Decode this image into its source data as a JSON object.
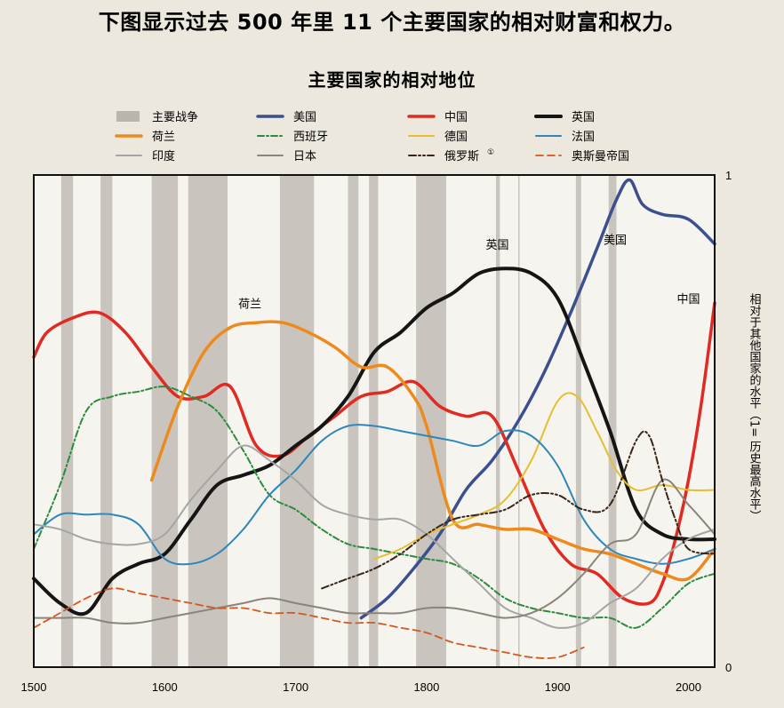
{
  "page": {
    "headline": "下图显示过去 500 年里 11 个主要国家的相对财富和权力。"
  },
  "chart_data": {
    "type": "line",
    "title": "主要国家的相对地位",
    "xlabel": "",
    "ylabel": "相对于其他国家的水平（1= 历史最高水平）",
    "xlim": [
      1500,
      2020
    ],
    "ylim": [
      0,
      1
    ],
    "x_ticks": [
      "1500",
      "1600",
      "1700",
      "1800",
      "1900",
      "2000"
    ],
    "y_ticks": [
      "0",
      "1"
    ],
    "footnote_mark": "①",
    "legend_war_label": "主要战争",
    "war_color": "#b9b5ad",
    "wars": [
      [
        1521,
        1530
      ],
      [
        1551,
        1560
      ],
      [
        1590,
        1610
      ],
      [
        1618,
        1648
      ],
      [
        1688,
        1714
      ],
      [
        1740,
        1748
      ],
      [
        1756,
        1763
      ],
      [
        1792,
        1815
      ],
      [
        1853,
        1856
      ],
      [
        1870,
        1871
      ],
      [
        1914,
        1918
      ],
      [
        1939,
        1945
      ]
    ],
    "annotations": [
      {
        "text": "荷兰",
        "x": 1665,
        "y": 0.73
      },
      {
        "text": "英国",
        "x": 1854,
        "y": 0.85
      },
      {
        "text": "美国",
        "x": 1944,
        "y": 0.86
      },
      {
        "text": "中国",
        "x": 2000,
        "y": 0.74
      }
    ],
    "series": [
      {
        "name": "美国",
        "color": "#3c4f8e",
        "width": 3.5,
        "dash": "",
        "x": [
          1750,
          1770,
          1790,
          1810,
          1830,
          1850,
          1870,
          1890,
          1910,
          1930,
          1945,
          1955,
          1965,
          1980,
          2000,
          2020
        ],
        "y": [
          0.1,
          0.14,
          0.2,
          0.27,
          0.36,
          0.42,
          0.5,
          0.6,
          0.72,
          0.85,
          0.95,
          0.99,
          0.94,
          0.92,
          0.91,
          0.86
        ]
      },
      {
        "name": "中国",
        "color": "#e02a22",
        "width": 3.5,
        "dash": "",
        "x": [
          1500,
          1510,
          1530,
          1550,
          1570,
          1590,
          1610,
          1630,
          1650,
          1670,
          1690,
          1710,
          1730,
          1750,
          1770,
          1790,
          1810,
          1830,
          1850,
          1870,
          1890,
          1910,
          1930,
          1950,
          1970,
          1980,
          1990,
          2000,
          2010,
          2020
        ],
        "y": [
          0.63,
          0.68,
          0.71,
          0.72,
          0.68,
          0.61,
          0.55,
          0.55,
          0.57,
          0.45,
          0.43,
          0.47,
          0.51,
          0.55,
          0.56,
          0.58,
          0.53,
          0.51,
          0.51,
          0.4,
          0.28,
          0.21,
          0.19,
          0.14,
          0.13,
          0.17,
          0.26,
          0.38,
          0.54,
          0.74
        ]
      },
      {
        "name": "英国",
        "color": "#151515",
        "width": 4,
        "dash": "",
        "x": [
          1500,
          1520,
          1540,
          1560,
          1580,
          1600,
          1620,
          1640,
          1660,
          1680,
          1700,
          1720,
          1740,
          1760,
          1780,
          1800,
          1820,
          1840,
          1860,
          1880,
          1900,
          1920,
          1940,
          1960,
          1980,
          2000,
          2020
        ],
        "y": [
          0.18,
          0.13,
          0.11,
          0.18,
          0.21,
          0.23,
          0.3,
          0.37,
          0.39,
          0.41,
          0.45,
          0.49,
          0.55,
          0.64,
          0.68,
          0.73,
          0.76,
          0.8,
          0.81,
          0.8,
          0.75,
          0.62,
          0.48,
          0.32,
          0.27,
          0.26,
          0.26
        ]
      },
      {
        "name": "荷兰",
        "color": "#ee8a1d",
        "width": 3.5,
        "dash": "",
        "x": [
          1590,
          1610,
          1630,
          1650,
          1670,
          1690,
          1710,
          1730,
          1750,
          1770,
          1790,
          1800,
          1820,
          1840,
          1860,
          1880,
          1900,
          1920,
          1940,
          1960,
          1980,
          2000,
          2020
        ],
        "y": [
          0.38,
          0.53,
          0.64,
          0.69,
          0.7,
          0.7,
          0.68,
          0.65,
          0.61,
          0.61,
          0.55,
          0.49,
          0.3,
          0.29,
          0.28,
          0.28,
          0.26,
          0.24,
          0.23,
          0.21,
          0.19,
          0.18,
          0.24
        ]
      },
      {
        "name": "西班牙",
        "color": "#2d8a3e",
        "width": 2,
        "dash": "7,3,2,3",
        "x": [
          1500,
          1520,
          1540,
          1560,
          1580,
          1600,
          1620,
          1640,
          1660,
          1680,
          1700,
          1720,
          1740,
          1760,
          1780,
          1800,
          1820,
          1840,
          1860,
          1880,
          1900,
          1920,
          1940,
          1960,
          1980,
          2000,
          2020
        ],
        "y": [
          0.24,
          0.37,
          0.52,
          0.55,
          0.56,
          0.57,
          0.55,
          0.52,
          0.44,
          0.35,
          0.32,
          0.28,
          0.25,
          0.24,
          0.23,
          0.22,
          0.21,
          0.18,
          0.14,
          0.12,
          0.11,
          0.1,
          0.1,
          0.08,
          0.12,
          0.17,
          0.19
        ]
      },
      {
        "name": "德国",
        "color": "#e6be2f",
        "width": 2,
        "dash": "",
        "x": [
          1760,
          1780,
          1800,
          1820,
          1840,
          1860,
          1880,
          1900,
          1915,
          1930,
          1945,
          1960,
          1980,
          2000,
          2020
        ],
        "y": [
          0.22,
          0.24,
          0.27,
          0.29,
          0.31,
          0.34,
          0.42,
          0.54,
          0.55,
          0.48,
          0.4,
          0.36,
          0.37,
          0.36,
          0.36
        ]
      },
      {
        "name": "法国",
        "color": "#2e87b8",
        "width": 2,
        "dash": "",
        "x": [
          1500,
          1520,
          1540,
          1560,
          1580,
          1600,
          1620,
          1640,
          1660,
          1680,
          1700,
          1720,
          1740,
          1760,
          1780,
          1800,
          1820,
          1840,
          1860,
          1880,
          1900,
          1920,
          1940,
          1960,
          1980,
          2000,
          2020
        ],
        "y": [
          0.27,
          0.31,
          0.31,
          0.31,
          0.29,
          0.22,
          0.21,
          0.23,
          0.28,
          0.35,
          0.4,
          0.46,
          0.49,
          0.49,
          0.48,
          0.47,
          0.46,
          0.45,
          0.48,
          0.47,
          0.41,
          0.3,
          0.24,
          0.22,
          0.21,
          0.22,
          0.24
        ]
      },
      {
        "name": "印度",
        "color": "#a5a5a5",
        "width": 2,
        "dash": "",
        "x": [
          1500,
          1520,
          1540,
          1560,
          1580,
          1600,
          1620,
          1640,
          1660,
          1680,
          1700,
          1720,
          1740,
          1760,
          1780,
          1800,
          1820,
          1840,
          1860,
          1880,
          1900,
          1920,
          1940,
          1960,
          1980,
          2000,
          2020
        ],
        "y": [
          0.29,
          0.28,
          0.26,
          0.25,
          0.25,
          0.27,
          0.34,
          0.4,
          0.45,
          0.42,
          0.38,
          0.33,
          0.31,
          0.3,
          0.3,
          0.27,
          0.22,
          0.17,
          0.12,
          0.1,
          0.08,
          0.09,
          0.13,
          0.16,
          0.22,
          0.26,
          0.28
        ]
      },
      {
        "name": "日本",
        "color": "#8a8479",
        "width": 2,
        "dash": "",
        "x": [
          1500,
          1520,
          1540,
          1560,
          1580,
          1600,
          1620,
          1640,
          1660,
          1680,
          1700,
          1720,
          1740,
          1760,
          1780,
          1800,
          1820,
          1840,
          1860,
          1880,
          1900,
          1920,
          1940,
          1960,
          1980,
          2000,
          2020
        ],
        "y": [
          0.1,
          0.1,
          0.1,
          0.09,
          0.09,
          0.1,
          0.11,
          0.12,
          0.13,
          0.14,
          0.13,
          0.12,
          0.11,
          0.11,
          0.11,
          0.12,
          0.12,
          0.11,
          0.1,
          0.11,
          0.14,
          0.19,
          0.25,
          0.27,
          0.38,
          0.33,
          0.27
        ]
      },
      {
        "name": "俄罗斯",
        "color": "#3a2518",
        "width": 2,
        "dash": "8,3,2,3,2,3",
        "x": [
          1720,
          1740,
          1760,
          1780,
          1800,
          1820,
          1840,
          1860,
          1880,
          1900,
          1920,
          1940,
          1960,
          1970,
          1980,
          1990,
          2000,
          2020
        ],
        "y": [
          0.16,
          0.18,
          0.2,
          0.23,
          0.27,
          0.3,
          0.31,
          0.32,
          0.35,
          0.35,
          0.32,
          0.33,
          0.46,
          0.47,
          0.38,
          0.3,
          0.24,
          0.23
        ]
      },
      {
        "name": "奥斯曼帝国",
        "color": "#d3571f",
        "width": 1.8,
        "dash": "8,5",
        "x": [
          1500,
          1520,
          1540,
          1560,
          1580,
          1600,
          1620,
          1640,
          1660,
          1680,
          1700,
          1720,
          1740,
          1760,
          1780,
          1800,
          1820,
          1840,
          1860,
          1880,
          1900,
          1920
        ],
        "y": [
          0.08,
          0.11,
          0.14,
          0.16,
          0.15,
          0.14,
          0.13,
          0.12,
          0.12,
          0.11,
          0.11,
          0.1,
          0.09,
          0.09,
          0.08,
          0.07,
          0.05,
          0.04,
          0.03,
          0.02,
          0.02,
          0.04
        ]
      }
    ]
  }
}
